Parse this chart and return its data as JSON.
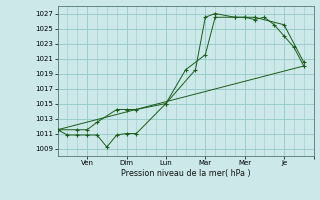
{
  "title": "Pression niveau de la mer( hPa )",
  "bg_color": "#cce8e8",
  "grid_color": "#99cccc",
  "line_color": "#1a5c1a",
  "ylim": [
    1008.0,
    1028.0
  ],
  "yticks": [
    1009,
    1011,
    1013,
    1015,
    1017,
    1019,
    1021,
    1023,
    1025,
    1027
  ],
  "xlim": [
    0,
    13
  ],
  "x_tick_positions": [
    1.5,
    3.5,
    5.5,
    7.5,
    9.5,
    11.5,
    13.0
  ],
  "x_tick_labels": [
    "Ven",
    "Dim",
    "Lun",
    "Mar",
    "Mer",
    "Je",
    ""
  ],
  "series1_x": [
    0.0,
    0.5,
    1.0,
    1.5,
    2.0,
    2.5,
    3.0,
    3.5,
    4.0,
    5.5,
    7.0,
    7.5,
    8.0,
    9.0,
    9.5,
    10.0,
    10.5,
    11.0,
    11.5,
    12.0,
    12.5
  ],
  "series1_y": [
    1011.5,
    1010.8,
    1010.8,
    1010.8,
    1010.8,
    1009.2,
    1010.8,
    1011.0,
    1011.0,
    1015.0,
    1019.5,
    1026.5,
    1027.0,
    1026.5,
    1026.5,
    1026.2,
    1026.5,
    1025.5,
    1024.0,
    1022.5,
    1020.0
  ],
  "series2_x": [
    0.0,
    1.0,
    1.5,
    2.0,
    3.0,
    3.5,
    4.0,
    5.5,
    6.5,
    7.5,
    8.0,
    9.0,
    9.5,
    10.0,
    11.5,
    12.5
  ],
  "series2_y": [
    1011.5,
    1011.5,
    1011.5,
    1012.5,
    1014.2,
    1014.2,
    1014.2,
    1015.0,
    1019.5,
    1021.5,
    1026.5,
    1026.5,
    1026.5,
    1026.5,
    1025.5,
    1020.5
  ],
  "series3_x": [
    0.0,
    12.5
  ],
  "series3_y": [
    1011.5,
    1020.0
  ],
  "marker": "+"
}
